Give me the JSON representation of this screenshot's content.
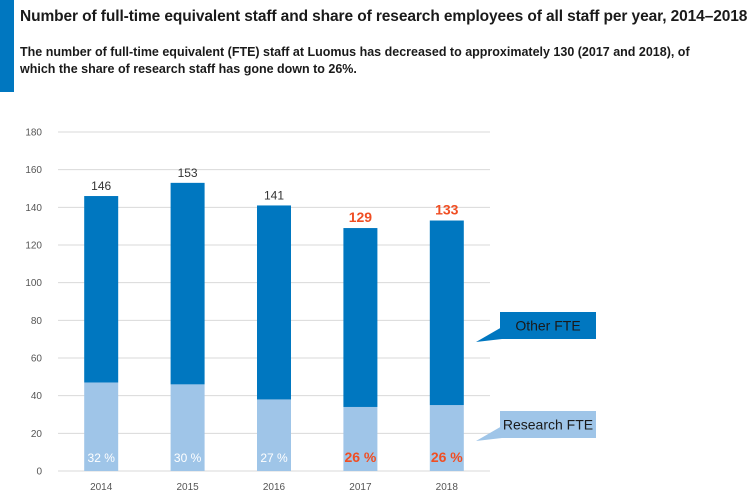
{
  "header": {
    "title": "Number of full-time equivalent staff and share of research employees of all staff per year, 2014–2018",
    "subtitle": "The number of full-time equivalent (FTE) staff at Luomus has decreased to approximately 130 (2017 and 2018), of which the share of research staff has gone down to 26%."
  },
  "colors": {
    "accent": "#0077c0",
    "other_fte": "#0077c0",
    "research_fte": "#9fc5e8",
    "highlight": "#f04e23",
    "grid": "#d9d9d9"
  },
  "chart_data": {
    "type": "bar",
    "stacked": true,
    "categories": [
      "2014",
      "2015",
      "2016",
      "2017",
      "2018"
    ],
    "series": [
      {
        "name": "Research FTE",
        "values": [
          47,
          46,
          38,
          34,
          35
        ]
      },
      {
        "name": "Other FTE",
        "values": [
          99,
          107,
          103,
          95,
          98
        ]
      }
    ],
    "totals": [
      "146",
      "153",
      "141",
      "129",
      "133"
    ],
    "research_share_labels": [
      "32 %",
      "30 %",
      "27 %",
      "26 %",
      "26 %"
    ],
    "highlighted_categories": [
      "2017",
      "2018"
    ],
    "ylim": [
      0,
      180
    ],
    "yticks": [
      0,
      20,
      40,
      60,
      80,
      100,
      120,
      140,
      160,
      180
    ],
    "grid": true,
    "legend_placement": "right callouts"
  }
}
